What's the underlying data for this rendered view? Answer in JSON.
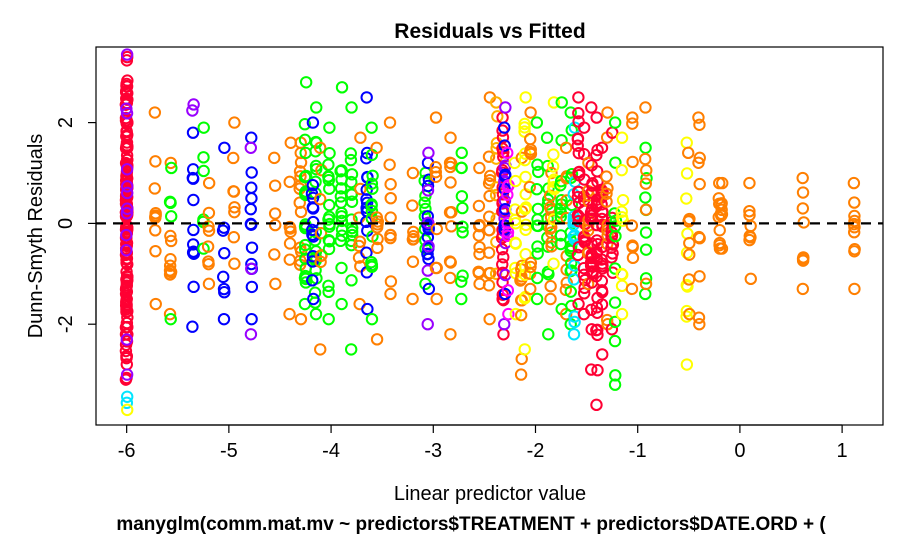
{
  "chart_data": {
    "type": "scatter",
    "title": "Residuals vs Fitted",
    "subtitle": "manyglm(comm.mat.mv ~ predictors$TREATMENT + predictors$DATE.ORD + (",
    "xlabel": "Linear predictor value",
    "ylabel": "Dunn-Smyth Residuals",
    "xlim": [
      -6.3,
      1.4
    ],
    "ylim": [
      -4.0,
      3.5
    ],
    "x_ticks": [
      -6,
      -5,
      -4,
      -3,
      -2,
      -1,
      0,
      1
    ],
    "x_tick_labels": [
      "-6",
      "-5",
      "-4",
      "-3",
      "-2",
      "-1",
      "0",
      "1"
    ],
    "y_ticks": [
      -2,
      0,
      2
    ],
    "y_tick_labels": [
      "-2",
      "0",
      "2"
    ],
    "reference_line": {
      "y": 0,
      "style": "dashed"
    },
    "marker": "open-circle",
    "color_note": "one colour per response variable (rainbow palette)",
    "columns": [
      {
        "x": -6.0,
        "color": "#FF0033",
        "n": 150,
        "y_min": -3.1,
        "y_max": 3.3
      },
      {
        "x": -6.0,
        "color": "#9900FF",
        "n": 12,
        "y_min": -3.0,
        "y_max": 3.35
      },
      {
        "x": -6.0,
        "color": "#00E5FF",
        "n": 2,
        "y_min": -3.5,
        "y_max": -3.5
      },
      {
        "x": -6.0,
        "color": "#FFFF00",
        "n": 1,
        "y_min": -3.7,
        "y_max": -3.7
      },
      {
        "x": -5.72,
        "color": "#FF7F00",
        "n": 10,
        "y_min": -1.6,
        "y_max": 2.2
      },
      {
        "x": -5.57,
        "color": "#FF7F00",
        "n": 10,
        "y_min": -1.8,
        "y_max": 1.2
      },
      {
        "x": -5.57,
        "color": "#00FF00",
        "n": 6,
        "y_min": -1.9,
        "y_max": 1.1
      },
      {
        "x": -5.35,
        "color": "#0000FF",
        "n": 12,
        "y_min": -2.05,
        "y_max": 1.8
      },
      {
        "x": -5.35,
        "color": "#9900FF",
        "n": 2,
        "y_min": 2.3,
        "y_max": 2.3
      },
      {
        "x": -5.25,
        "color": "#00FF00",
        "n": 6,
        "y_min": -0.5,
        "y_max": 1.9
      },
      {
        "x": -5.2,
        "color": "#FF7F00",
        "n": 8,
        "y_min": -1.2,
        "y_max": 0.8
      },
      {
        "x": -5.05,
        "color": "#0000FF",
        "n": 8,
        "y_min": -1.9,
        "y_max": 1.5
      },
      {
        "x": -4.95,
        "color": "#FF7F00",
        "n": 8,
        "y_min": -0.8,
        "y_max": 2.0
      },
      {
        "x": -4.78,
        "color": "#0000FF",
        "n": 12,
        "y_min": -1.9,
        "y_max": 1.7
      },
      {
        "x": -4.78,
        "color": "#9900FF",
        "n": 3,
        "y_min": -2.2,
        "y_max": 1.5
      },
      {
        "x": -4.55,
        "color": "#FF7F00",
        "n": 6,
        "y_min": -1.2,
        "y_max": 1.3
      },
      {
        "x": -4.4,
        "color": "#FF7F00",
        "n": 8,
        "y_min": -1.8,
        "y_max": 1.6
      },
      {
        "x": -4.3,
        "color": "#FF7F00",
        "n": 14,
        "y_min": -1.9,
        "y_max": 1.6
      },
      {
        "x": -4.25,
        "color": "#00FF00",
        "n": 22,
        "y_min": -1.6,
        "y_max": 2.8
      },
      {
        "x": -4.15,
        "color": "#00FF00",
        "n": 22,
        "y_min": -1.8,
        "y_max": 2.3
      },
      {
        "x": -4.18,
        "color": "#0000FF",
        "n": 14,
        "y_min": -1.5,
        "y_max": 2.0
      },
      {
        "x": -4.1,
        "color": "#FF7F00",
        "n": 8,
        "y_min": -2.5,
        "y_max": 1.5
      },
      {
        "x": -4.02,
        "color": "#00FF00",
        "n": 18,
        "y_min": -1.9,
        "y_max": 1.9
      },
      {
        "x": -3.9,
        "color": "#00FF00",
        "n": 16,
        "y_min": -1.6,
        "y_max": 2.7
      },
      {
        "x": -3.8,
        "color": "#00FF00",
        "n": 16,
        "y_min": -2.5,
        "y_max": 2.3
      },
      {
        "x": -3.72,
        "color": "#FF7F00",
        "n": 8,
        "y_min": -1.6,
        "y_max": 1.7
      },
      {
        "x": -3.65,
        "color": "#0000FF",
        "n": 16,
        "y_min": -1.7,
        "y_max": 2.5
      },
      {
        "x": -3.6,
        "color": "#00FF00",
        "n": 14,
        "y_min": -1.9,
        "y_max": 1.9
      },
      {
        "x": -3.55,
        "color": "#FF7F00",
        "n": 8,
        "y_min": -2.3,
        "y_max": 1.5
      },
      {
        "x": -3.42,
        "color": "#FF7F00",
        "n": 10,
        "y_min": -1.4,
        "y_max": 2.0
      },
      {
        "x": -3.2,
        "color": "#FF7F00",
        "n": 8,
        "y_min": -1.5,
        "y_max": 1.0
      },
      {
        "x": -3.08,
        "color": "#00FF00",
        "n": 10,
        "y_min": -1.2,
        "y_max": 1.0
      },
      {
        "x": -3.05,
        "color": "#0000FF",
        "n": 14,
        "y_min": -1.3,
        "y_max": 1.2
      },
      {
        "x": -3.05,
        "color": "#9900FF",
        "n": 6,
        "y_min": -2.0,
        "y_max": 1.4
      },
      {
        "x": -2.97,
        "color": "#FF7F00",
        "n": 8,
        "y_min": -1.5,
        "y_max": 2.1
      },
      {
        "x": -2.83,
        "color": "#FF7F00",
        "n": 12,
        "y_min": -2.2,
        "y_max": 1.7
      },
      {
        "x": -2.72,
        "color": "#00FF00",
        "n": 10,
        "y_min": -1.5,
        "y_max": 1.4
      },
      {
        "x": -2.55,
        "color": "#FF7F00",
        "n": 10,
        "y_min": -1.2,
        "y_max": 1.1
      },
      {
        "x": -2.45,
        "color": "#FF7F00",
        "n": 14,
        "y_min": -1.9,
        "y_max": 2.5
      },
      {
        "x": -2.38,
        "color": "#FFB000",
        "n": 10,
        "y_min": -1.0,
        "y_max": 2.4
      },
      {
        "x": -2.32,
        "color": "#FF0033",
        "n": 26,
        "y_min": -2.2,
        "y_max": 2.1
      },
      {
        "x": -2.3,
        "color": "#9900FF",
        "n": 14,
        "y_min": -2.0,
        "y_max": 2.3
      },
      {
        "x": -2.3,
        "color": "#0000FF",
        "n": 10,
        "y_min": -1.4,
        "y_max": 1.9
      },
      {
        "x": -2.27,
        "color": "#FF00FF",
        "n": 10,
        "y_min": -1.8,
        "y_max": 1.4
      },
      {
        "x": -2.2,
        "color": "#FFFF00",
        "n": 10,
        "y_min": -1.8,
        "y_max": 1.2
      },
      {
        "x": -2.14,
        "color": "#FF7F00",
        "n": 12,
        "y_min": -3.0,
        "y_max": 1.3
      },
      {
        "x": -2.1,
        "color": "#FFFF00",
        "n": 18,
        "y_min": -2.5,
        "y_max": 2.5
      },
      {
        "x": -2.05,
        "color": "#FF7F00",
        "n": 10,
        "y_min": -1.3,
        "y_max": 2.2
      },
      {
        "x": -1.98,
        "color": "#00FF00",
        "n": 12,
        "y_min": -1.5,
        "y_max": 2.0
      },
      {
        "x": -1.88,
        "color": "#00FF00",
        "n": 12,
        "y_min": -2.2,
        "y_max": 1.7
      },
      {
        "x": -1.85,
        "color": "#FF7F00",
        "n": 12,
        "y_min": -1.5,
        "y_max": 1.0
      },
      {
        "x": -1.82,
        "color": "#FFFF00",
        "n": 10,
        "y_min": -0.8,
        "y_max": 2.4
      },
      {
        "x": -1.75,
        "color": "#00FF00",
        "n": 12,
        "y_min": -1.7,
        "y_max": 2.4
      },
      {
        "x": -1.7,
        "color": "#FF7F00",
        "n": 10,
        "y_min": -1.8,
        "y_max": 1.5
      },
      {
        "x": -1.65,
        "color": "#00FF00",
        "n": 16,
        "y_min": -2.0,
        "y_max": 2.2
      },
      {
        "x": -1.62,
        "color": "#00E5FF",
        "n": 18,
        "y_min": -2.2,
        "y_max": 1.9
      },
      {
        "x": -1.58,
        "color": "#FF0033",
        "n": 20,
        "y_min": -1.6,
        "y_max": 2.5
      },
      {
        "x": -1.52,
        "color": "#FF0033",
        "n": 20,
        "y_min": -1.8,
        "y_max": 1.9
      },
      {
        "x": -1.48,
        "color": "#FF7F00",
        "n": 10,
        "y_min": -1.2,
        "y_max": 1.2
      },
      {
        "x": -1.45,
        "color": "#FF0033",
        "n": 26,
        "y_min": -2.9,
        "y_max": 2.3
      },
      {
        "x": -1.4,
        "color": "#FF0033",
        "n": 24,
        "y_min": -3.6,
        "y_max": 2.1
      },
      {
        "x": -1.35,
        "color": "#FF0033",
        "n": 22,
        "y_min": -2.6,
        "y_max": 1.5
      },
      {
        "x": -1.3,
        "color": "#FF7F00",
        "n": 12,
        "y_min": -2.0,
        "y_max": 2.2
      },
      {
        "x": -1.25,
        "color": "#FF0033",
        "n": 14,
        "y_min": -2.1,
        "y_max": 1.8
      },
      {
        "x": -1.22,
        "color": "#00FF00",
        "n": 12,
        "y_min": -3.2,
        "y_max": 2.0
      },
      {
        "x": -1.15,
        "color": "#FFFF00",
        "n": 10,
        "y_min": -1.8,
        "y_max": 1.7
      },
      {
        "x": -1.05,
        "color": "#FF7F00",
        "n": 8,
        "y_min": -1.3,
        "y_max": 2.1
      },
      {
        "x": -0.92,
        "color": "#00FF00",
        "n": 8,
        "y_min": -1.4,
        "y_max": 1.5
      },
      {
        "x": -0.92,
        "color": "#FF7F00",
        "n": 6,
        "y_min": -1.2,
        "y_max": 2.3
      },
      {
        "x": -0.52,
        "color": "#FFFF00",
        "n": 10,
        "y_min": -2.8,
        "y_max": 1.6
      },
      {
        "x": -0.5,
        "color": "#FF7F00",
        "n": 8,
        "y_min": -1.8,
        "y_max": 1.4
      },
      {
        "x": -0.4,
        "color": "#FF7F00",
        "n": 10,
        "y_min": -2.0,
        "y_max": 2.1
      },
      {
        "x": -0.2,
        "color": "#FF7F00",
        "n": 8,
        "y_min": -0.5,
        "y_max": 0.8
      },
      {
        "x": -0.18,
        "color": "#FF7F00",
        "n": 8,
        "y_min": -0.5,
        "y_max": 0.8
      },
      {
        "x": 0.1,
        "color": "#FF7F00",
        "n": 8,
        "y_min": -1.1,
        "y_max": 0.8
      },
      {
        "x": 0.62,
        "color": "#FF7F00",
        "n": 8,
        "y_min": -1.3,
        "y_max": 0.9
      },
      {
        "x": 1.12,
        "color": "#FF7F00",
        "n": 10,
        "y_min": -1.3,
        "y_max": 0.8
      }
    ]
  }
}
